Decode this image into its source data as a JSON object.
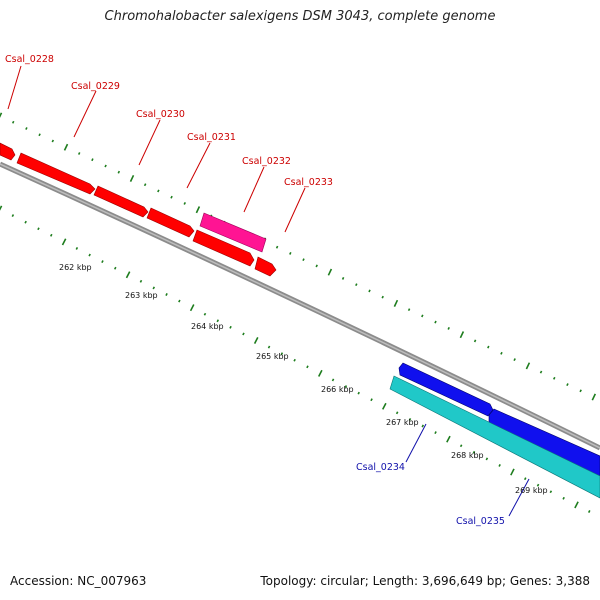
{
  "title": "Chromohalobacter salexigens DSM 3043, complete genome",
  "footer": {
    "accession": "Accession: NC_007963",
    "summary": "Topology: circular; Length: 3,696,649 bp; Genes: 3,388"
  },
  "colors": {
    "backbone": "#8c8c8c",
    "ticks": "#1e7d1e",
    "forward_gene": "#ff0000",
    "forward_highlight": "#ff1493",
    "reverse_gene": "#1010ee",
    "reverse_highlight": "#20c8c8",
    "forward_label": "#cc0000",
    "reverse_label": "#1010aa"
  },
  "chart_data": {
    "type": "genome-map",
    "scale_labels": [
      "262 kbp",
      "263 kbp",
      "264 kbp",
      "265 kbp",
      "266 kbp",
      "267 kbp",
      "268 kbp",
      "269 kbp"
    ],
    "forward_genes": [
      "Csal_0228",
      "Csal_0229",
      "Csal_0230",
      "Csal_0231",
      "Csal_0232",
      "Csal_0233"
    ],
    "reverse_genes": [
      "Csal_0234",
      "Csal_0235"
    ]
  }
}
